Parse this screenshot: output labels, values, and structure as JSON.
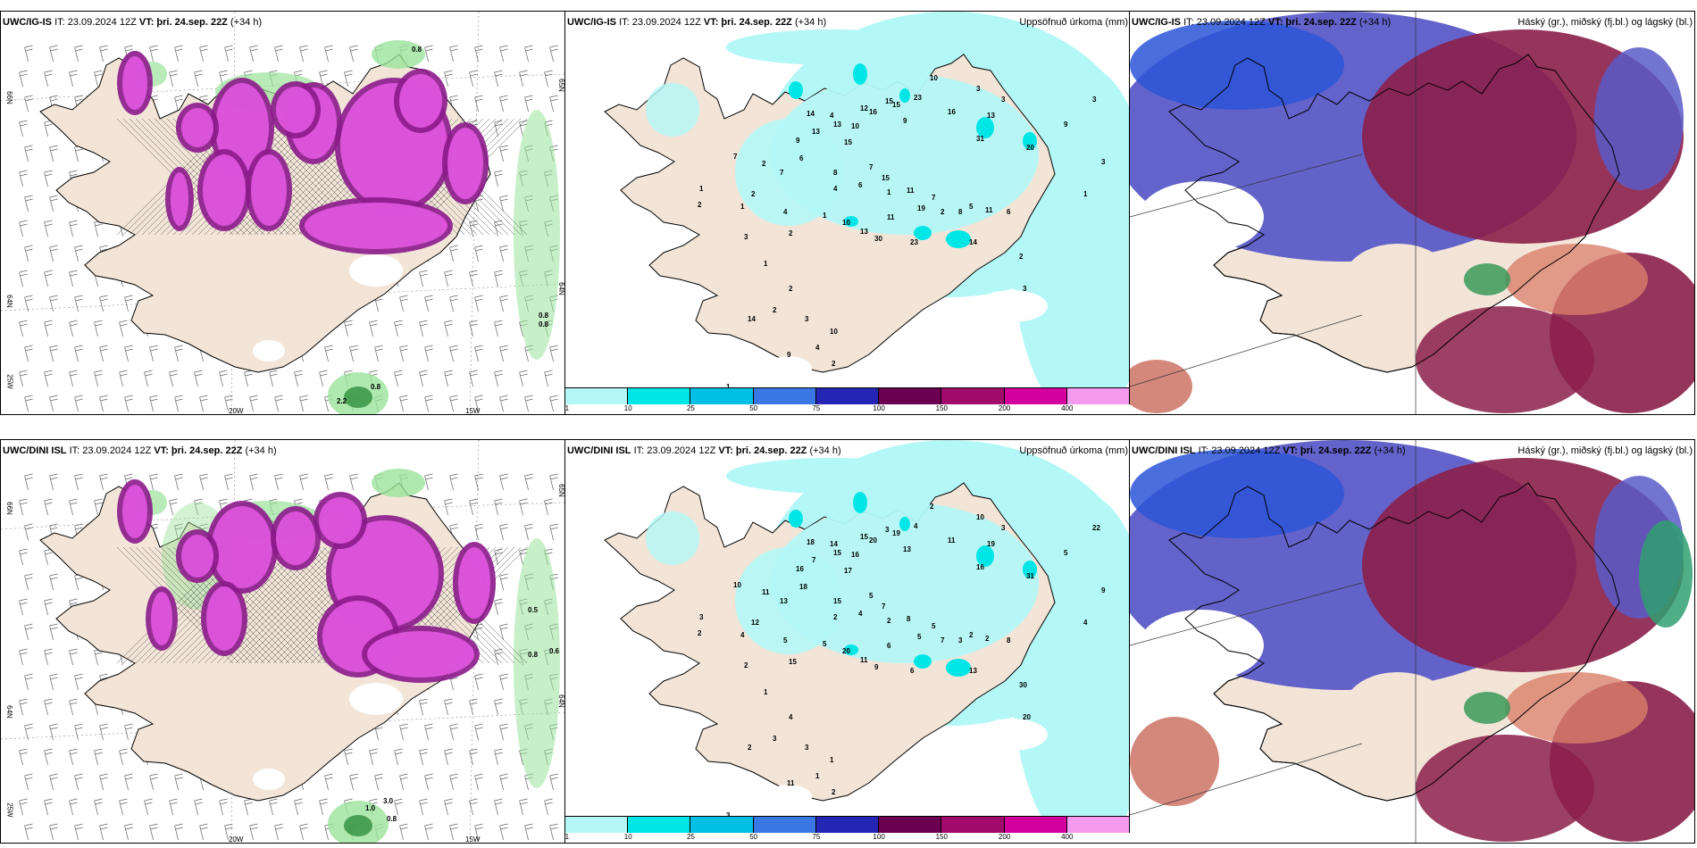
{
  "panels": [
    {
      "id": "p1",
      "model": "UWC/IG-IS",
      "it": "IT: 23.09.2024 12Z",
      "vt_label": "VT:",
      "vt": "þri. 24.sep. 22Z",
      "lead": "(+34 h)",
      "right_title": "",
      "lat_labels": [
        "66N",
        "64N",
        "65N",
        "64N"
      ],
      "lon_labels": [
        "25W",
        "20W",
        "15W"
      ],
      "extra_values": [
        "0.8",
        "0.8",
        "0.8",
        "2.2",
        "0.8"
      ]
    },
    {
      "id": "p2",
      "model": "UWC/IG-IS",
      "it": "IT: 23.09.2024 12Z",
      "vt_label": "VT:",
      "vt": "þri. 24.sep. 22Z",
      "lead": "(+34 h)",
      "right_title": "Uppsöfnuð úrkoma (mm)",
      "values": [
        "10",
        "3",
        "3",
        "23",
        "15",
        "12",
        "15",
        "16",
        "4",
        "14",
        "13",
        "16",
        "13",
        "9",
        "10",
        "31",
        "20",
        "3",
        "9",
        "13",
        "9",
        "15",
        "2",
        "7",
        "7",
        "6",
        "8",
        "7",
        "15",
        "6",
        "4",
        "1",
        "11",
        "7",
        "2",
        "8",
        "5",
        "11",
        "6",
        "19",
        "11",
        "10",
        "13",
        "1",
        "2",
        "4",
        "2",
        "1",
        "30",
        "23",
        "14",
        "2",
        "3",
        "3",
        "1",
        "1",
        "2",
        "3",
        "1",
        "2",
        "2",
        "14",
        "3",
        "10",
        "4",
        "9",
        "2",
        "1",
        "3"
      ],
      "colorbar": {
        "labels": [
          "1",
          "10",
          "25",
          "50",
          "75",
          "100",
          "150",
          "200",
          "400"
        ],
        "colors": [
          "#b3f7f7",
          "#00e5e5",
          "#00bfe5",
          "#3a78e6",
          "#2525b5",
          "#6b0050",
          "#a10b6b",
          "#d4009d",
          "#f59bef"
        ]
      }
    },
    {
      "id": "p3",
      "model": "UWC/IG-IS",
      "it": "IT: 23.09.2024 12Z",
      "vt_label": "VT:",
      "vt": "þri. 24.sep. 22Z",
      "lead": "(+34 h)",
      "right_title": "Háský (gr.), miðský (fj.bl.) og lágský (bl.)"
    },
    {
      "id": "p4",
      "model": "UWC/DINI ISL",
      "it": "IT: 23.09.2024 12Z",
      "vt_label": "VT:",
      "vt": "þri. 24.sep. 22Z",
      "lead": "(+34 h)",
      "right_title": "",
      "lat_labels": [
        "66N",
        "65N",
        "64N",
        "64N"
      ],
      "lon_labels": [
        "25W",
        "20W",
        "15W"
      ],
      "extra_values": [
        "0.5",
        "0.8",
        "0.6",
        "1.0",
        "3.0",
        "0.8"
      ]
    },
    {
      "id": "p5",
      "model": "UWC/DINI ISL",
      "it": "IT: 23.09.2024 12Z",
      "vt_label": "VT:",
      "vt": "þri. 24.sep. 22Z",
      "lead": "(+34 h)",
      "right_title": "Uppsöfnuð úrkoma (mm)",
      "values": [
        "2",
        "10",
        "3",
        "4",
        "3",
        "15",
        "19",
        "20",
        "14",
        "18",
        "15",
        "11",
        "19",
        "13",
        "16",
        "16",
        "31",
        "22",
        "5",
        "7",
        "16",
        "17",
        "11",
        "10",
        "13",
        "18",
        "15",
        "5",
        "7",
        "4",
        "2",
        "2",
        "8",
        "5",
        "7",
        "3",
        "2",
        "2",
        "8",
        "5",
        "6",
        "20",
        "11",
        "5",
        "15",
        "5",
        "12",
        "4",
        "9",
        "6",
        "13",
        "30",
        "20",
        "9",
        "4",
        "3",
        "2",
        "2",
        "1",
        "4",
        "3",
        "2",
        "3",
        "1",
        "1",
        "11",
        "2",
        "3",
        "2"
      ],
      "colorbar": {
        "labels": [
          "1",
          "10",
          "25",
          "50",
          "75",
          "100",
          "150",
          "200",
          "400"
        ],
        "colors": [
          "#b3f7f7",
          "#00e5e5",
          "#00bfe5",
          "#3a78e6",
          "#2525b5",
          "#6b0050",
          "#a10b6b",
          "#d4009d",
          "#f59bef"
        ]
      }
    },
    {
      "id": "p6",
      "model": "UWC/DINI ISL",
      "it": "IT: 23.09.2024 12Z",
      "vt_label": "VT:",
      "vt": "þri. 24.sep. 22Z",
      "lead": "(+34 h)",
      "right_title": "Háský (gr.), miðský (fj.bl.) og lágský (bl.)"
    }
  ],
  "colors": {
    "land": "#f2e5d8",
    "coast": "#000000",
    "precip_light": "#b3f7f7",
    "precip_mid": "#00e5e5",
    "snow": "#dd55dd",
    "snow_dark": "#8b1a8b",
    "rain_green": "#9be39b",
    "cloud_high": "#8b1f4a",
    "cloud_mid": "#5b5bc8",
    "cloud_low": "#2c55d8"
  }
}
